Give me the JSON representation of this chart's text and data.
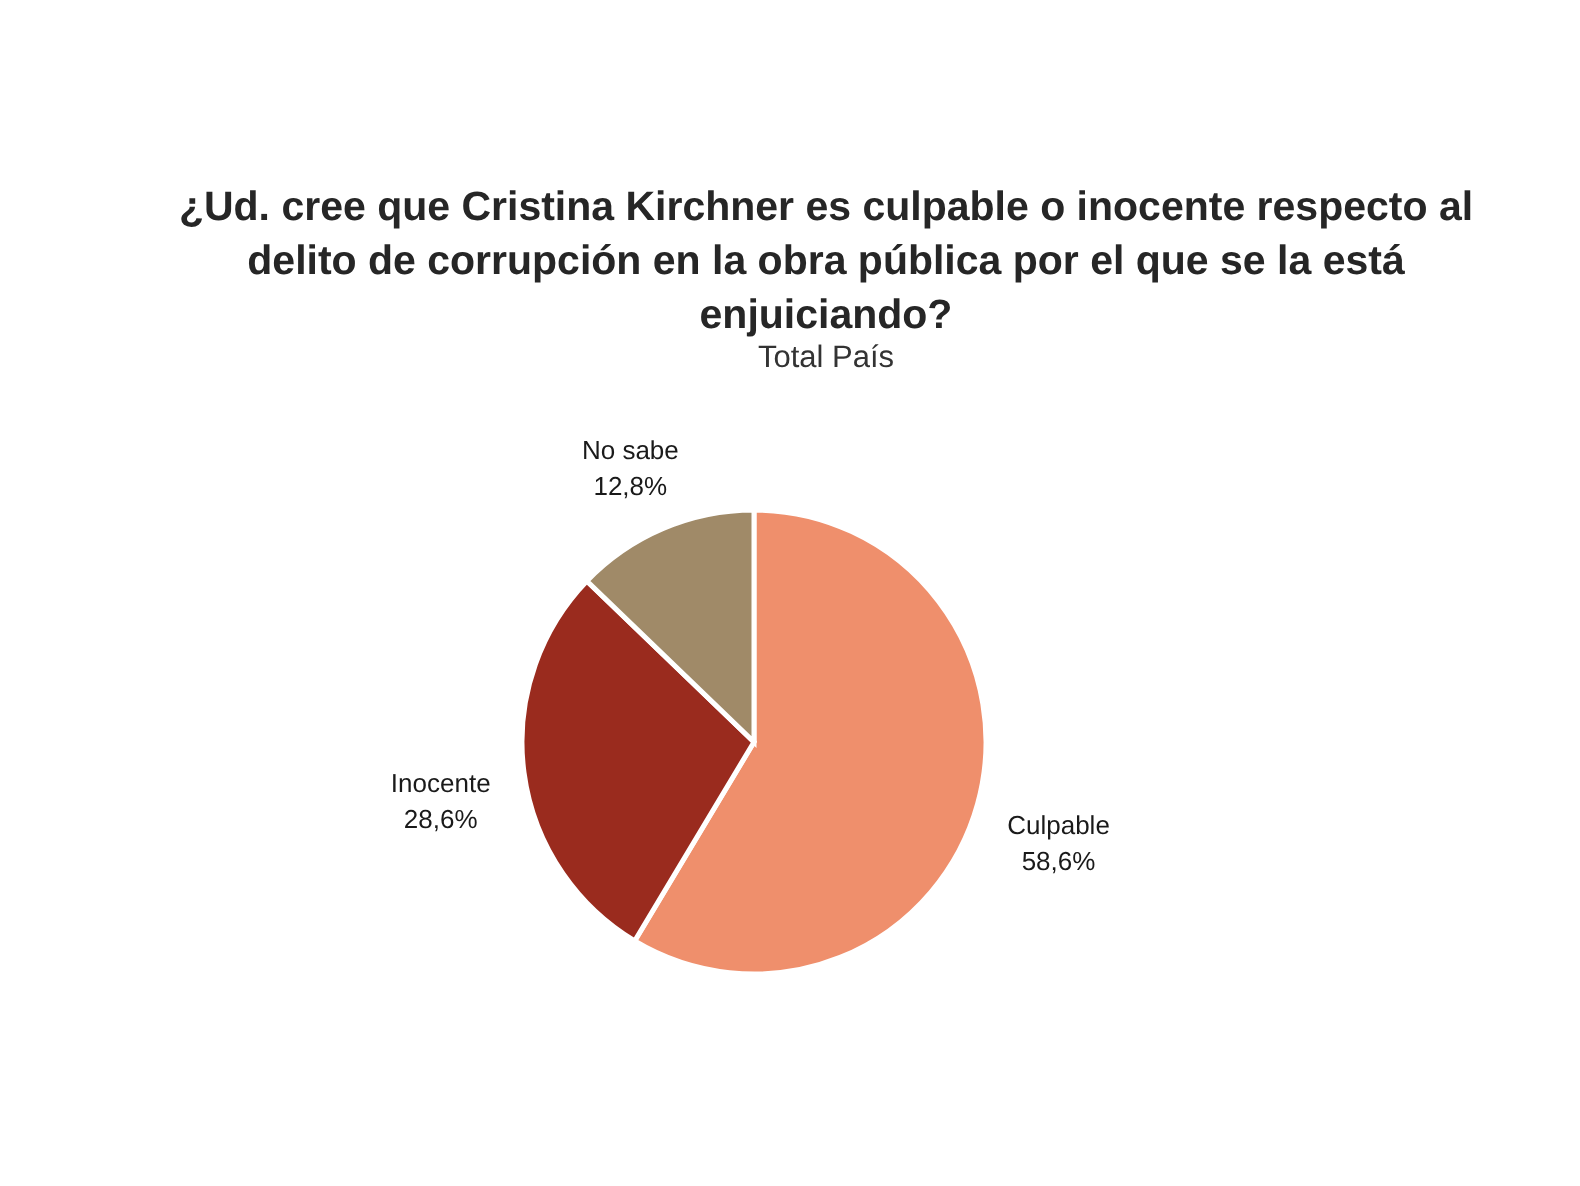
{
  "chart_data": {
    "type": "pie",
    "title": "¿Ud. cree que Cristina Kirchner es culpable o inocente respecto al delito de corrupción en la obra pública por el que se la está enjuiciando?",
    "subtitle": "Total País",
    "categories": [
      "Culpable",
      "Inocente",
      "No sabe"
    ],
    "values": [
      58.6,
      28.6,
      12.8
    ],
    "colors": [
      "#ef8f6c",
      "#9a2b1e",
      "#a08a68"
    ],
    "value_labels": [
      "58,6%",
      "28,6%",
      "12,8%"
    ]
  }
}
